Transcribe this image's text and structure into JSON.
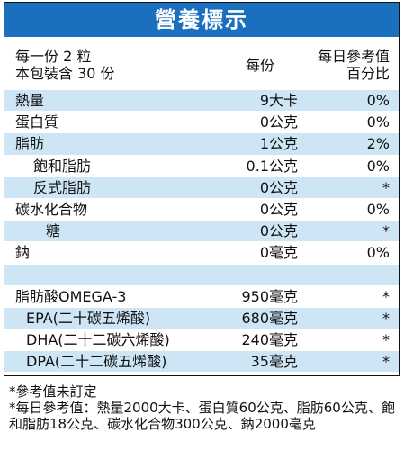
{
  "title": "營養標示",
  "header": {
    "serving": "每一份 2 粒",
    "servings_per_package": "本包裝含 30 份",
    "per_serving": "每份",
    "daily_value": "每日參考值",
    "daily_value_unit": "百分比"
  },
  "nutrients": [
    {
      "name": "熱量",
      "amount": "9大卡",
      "daily": "0%"
    },
    {
      "name": "蛋白質",
      "amount": "0公克",
      "daily": "0%"
    },
    {
      "name": "脂肪",
      "amount": "1公克",
      "daily": "2%"
    },
    {
      "name": "飽和脂肪",
      "amount": "0.1公克",
      "daily": "0%"
    },
    {
      "name": "反式脂肪",
      "amount": "0公克",
      "daily": "*"
    },
    {
      "name": "碳水化合物",
      "amount": "0公克",
      "daily": "0%"
    },
    {
      "name": "糖",
      "amount": "0公克",
      "daily": "*"
    },
    {
      "name": "鈉",
      "amount": "0毫克",
      "daily": "0%"
    }
  ],
  "fatty_acids": [
    {
      "name": "脂肪酸OMEGA-3",
      "amount": "950毫克",
      "daily": "*"
    },
    {
      "name": "EPA(二十碳五烯酸)",
      "amount": "680毫克",
      "daily": "*"
    },
    {
      "name": "DHA(二十二碳六烯酸)",
      "amount": "240毫克",
      "daily": "*"
    },
    {
      "name": "DPA(二十二碳五烯酸)",
      "amount": "35毫克",
      "daily": "*"
    }
  ],
  "footnotes": [
    "*參考值未訂定",
    "*每日參考值：熱量2000大卡、蛋白質60公克、脂肪60公克、飽和脂肪18公克、碳水化合物300公克、鈉2000毫克"
  ]
}
